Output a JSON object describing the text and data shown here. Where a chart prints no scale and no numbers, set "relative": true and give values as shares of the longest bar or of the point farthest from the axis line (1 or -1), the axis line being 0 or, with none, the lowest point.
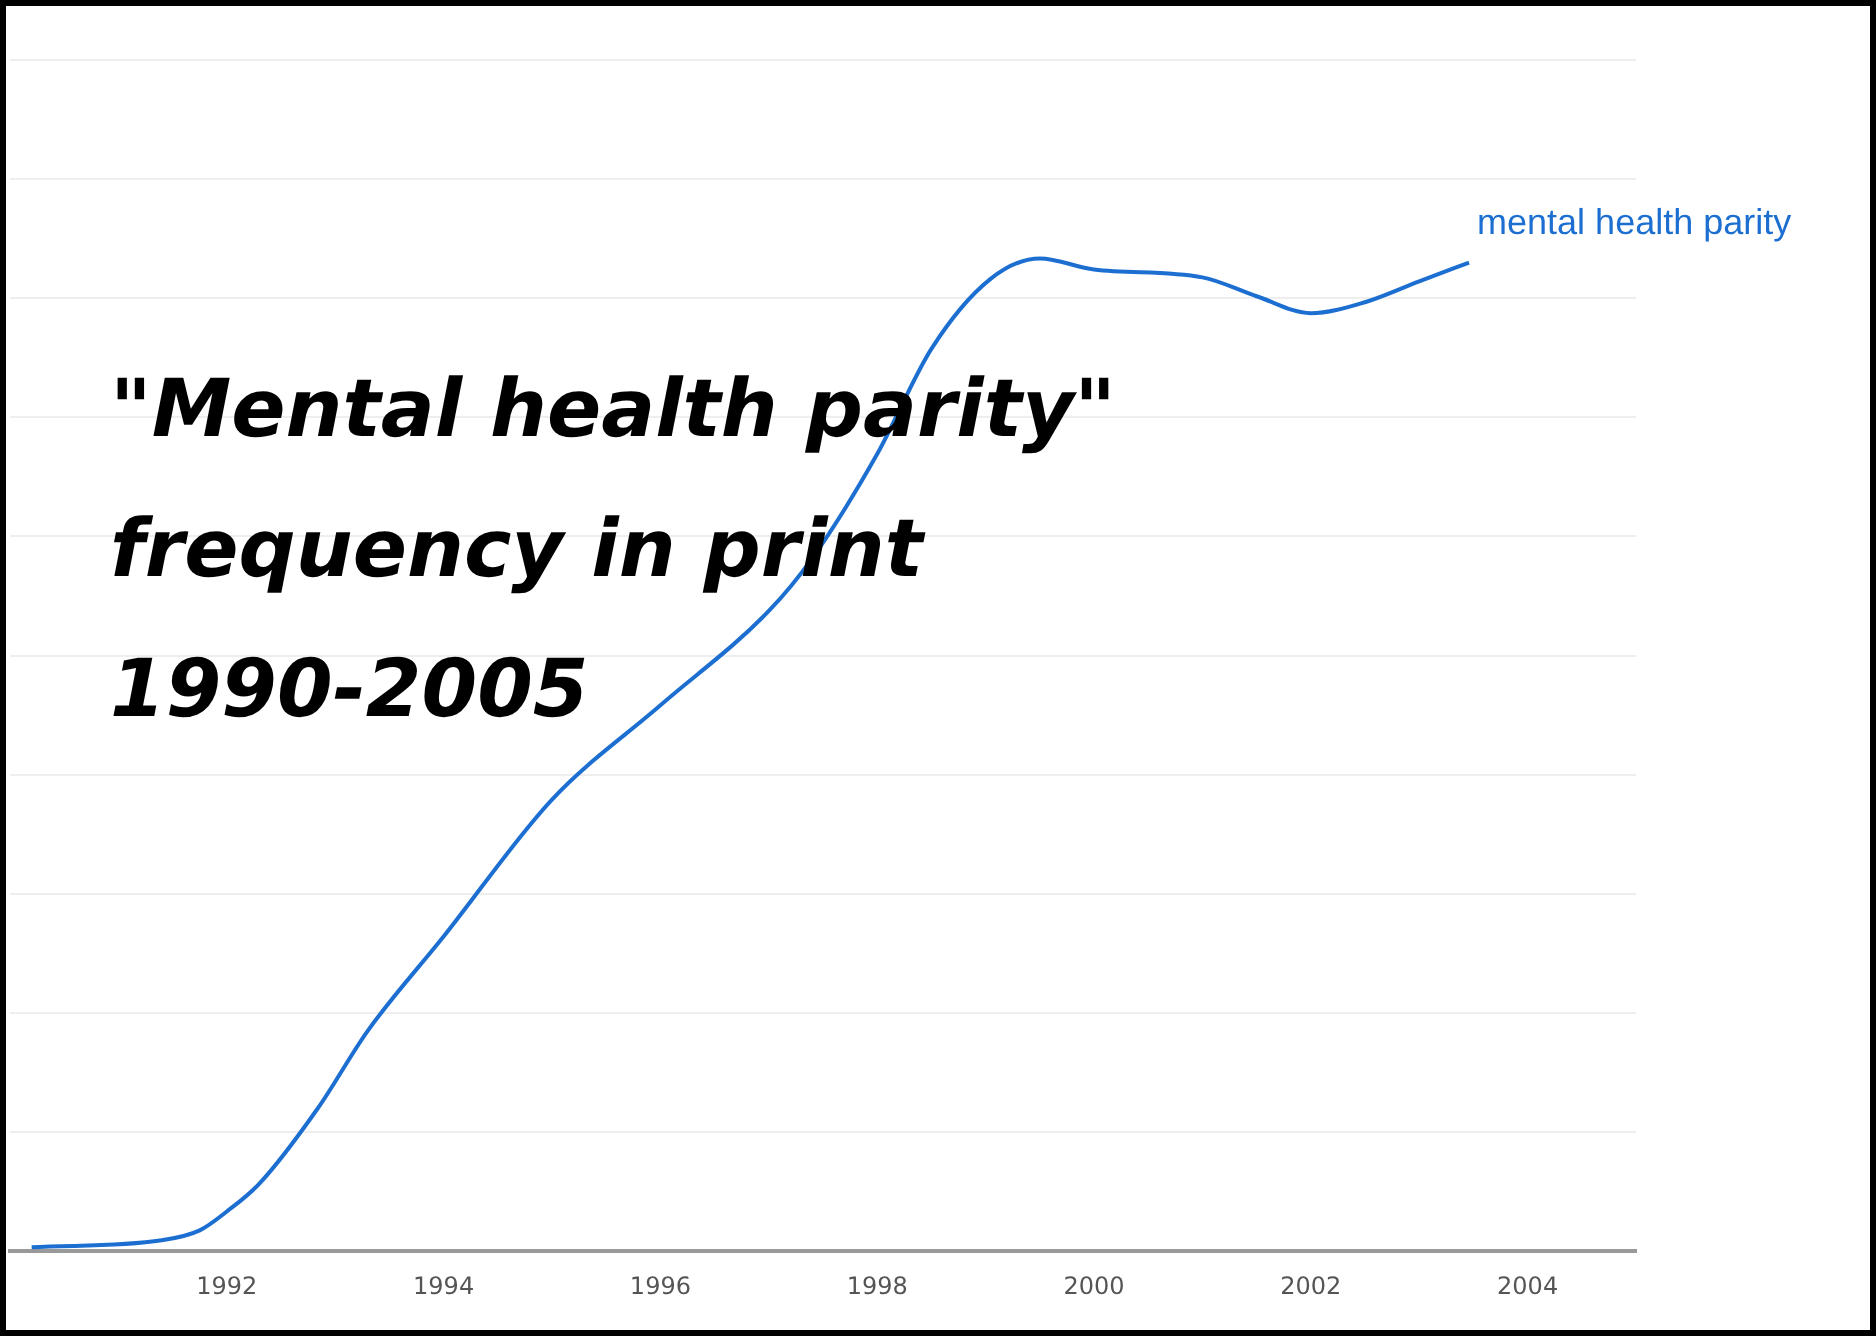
{
  "chart_data": {
    "type": "line",
    "title": "\"Mental health parity\"\nfrequency in print\n1990-2005",
    "relative": true,
    "xlim": [
      1990,
      2005
    ],
    "xticks": [
      1992,
      1994,
      1996,
      1998,
      2000,
      2002,
      2004
    ],
    "grid": "y",
    "legend": false,
    "marker": "none",
    "line_style": "solid",
    "series": [
      {
        "name": "mental health parity",
        "color": "#1c6fd1",
        "x": [
          1990.2,
          1991.4,
          1991.75,
          1992,
          1992.3,
          1992.84,
          1993.3,
          1994,
          1995,
          1996,
          1997,
          1997.4,
          1998,
          1998.5,
          1999.04,
          1999.5,
          2000,
          2001,
          2001.5,
          2002,
          2002.5,
          2003,
          2003.46
        ],
        "values": [
          0.004,
          0.011,
          0.021,
          0.04,
          0.068,
          0.144,
          0.222,
          0.317,
          0.455,
          0.55,
          0.645,
          0.698,
          0.803,
          0.909,
          0.979,
          1,
          0.989,
          0.981,
          0.962,
          0.945,
          0.956,
          0.977,
          0.996
        ]
      }
    ]
  }
}
